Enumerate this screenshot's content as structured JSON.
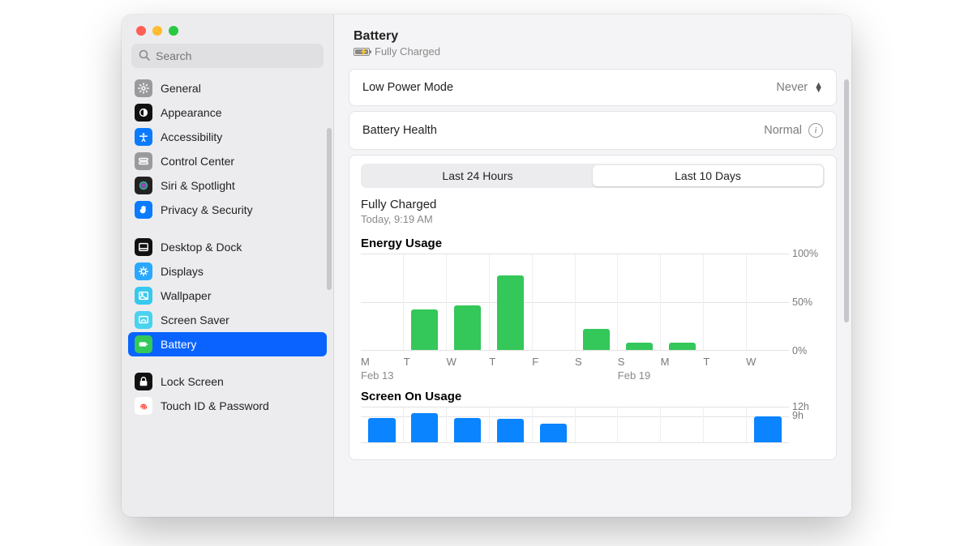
{
  "header": {
    "title": "Battery",
    "status": "Fully Charged"
  },
  "search": {
    "placeholder": "Search"
  },
  "sidebar": {
    "groups": [
      [
        {
          "label": "General",
          "icon": "gear",
          "bg": "#9a9a9e"
        },
        {
          "label": "Appearance",
          "icon": "appearance",
          "bg": "#111111"
        },
        {
          "label": "Accessibility",
          "icon": "accessibility",
          "bg": "#0a7bff"
        },
        {
          "label": "Control Center",
          "icon": "control-center",
          "bg": "#9a9a9e"
        },
        {
          "label": "Siri & Spotlight",
          "icon": "siri",
          "bg": "#222"
        },
        {
          "label": "Privacy & Security",
          "icon": "hand",
          "bg": "#0a7bff"
        }
      ],
      [
        {
          "label": "Desktop & Dock",
          "icon": "dock",
          "bg": "#111"
        },
        {
          "label": "Displays",
          "icon": "displays",
          "bg": "#2aa8ff"
        },
        {
          "label": "Wallpaper",
          "icon": "wallpaper",
          "bg": "#37c8ee"
        },
        {
          "label": "Screen Saver",
          "icon": "screensaver",
          "bg": "#4ad2ee"
        },
        {
          "label": "Battery",
          "icon": "battery",
          "bg": "#34c759",
          "selected": true
        }
      ],
      [
        {
          "label": "Lock Screen",
          "icon": "lock",
          "bg": "#111"
        },
        {
          "label": "Touch ID & Password",
          "icon": "fingerprint",
          "bg": "#fff",
          "fg": "#ff3b30"
        }
      ]
    ]
  },
  "rows": {
    "lowPower": {
      "label": "Low Power Mode",
      "value": "Never"
    },
    "health": {
      "label": "Battery Health",
      "value": "Normal"
    }
  },
  "segmented": {
    "opts": [
      "Last 24 Hours",
      "Last 10 Days"
    ],
    "active": 1
  },
  "lastCharge": {
    "line": "Fully Charged",
    "sub": "Today, 9:19 AM"
  },
  "energyChart": {
    "title": "Energy Usage",
    "type": "bar",
    "color": "#34c759",
    "ylim": [
      0,
      100
    ],
    "yticks": [
      {
        "v": 0,
        "label": "0%"
      },
      {
        "v": 50,
        "label": "50%"
      },
      {
        "v": 100,
        "label": "100%"
      }
    ],
    "days": [
      "M",
      "T",
      "W",
      "T",
      "F",
      "S",
      "S",
      "M",
      "T",
      "W"
    ],
    "secondary": [
      "Feb 13",
      "",
      "",
      "",
      "",
      "",
      "Feb 19",
      "",
      "",
      ""
    ],
    "values": [
      0,
      42,
      47,
      78,
      0,
      22,
      8,
      8,
      0,
      0
    ]
  },
  "screenChart": {
    "title": "Screen On Usage",
    "type": "bar",
    "color": "#0a84ff",
    "ylim": [
      0,
      12
    ],
    "yticks": [
      {
        "v": 9,
        "label": "9h"
      },
      {
        "v": 12,
        "label": "12h"
      }
    ],
    "values": [
      8.5,
      10,
      8.3,
      8,
      6.5,
      0,
      0,
      0,
      0,
      9
    ],
    "visible_rows": 2
  },
  "colors": {
    "window_bg": "#f4f4f6",
    "sidebar_bg": "#ececee",
    "accent": "#0a63ff",
    "grid": "#e3e3e6",
    "text_muted": "#7a7a7e"
  }
}
